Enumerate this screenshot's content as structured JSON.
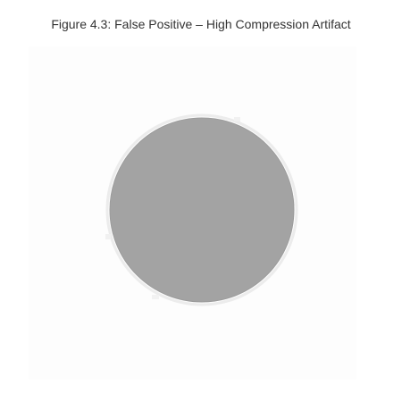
{
  "figure": {
    "caption": "Figure 4.3: False Positive – High Compression Artifact",
    "colors": {
      "background": "#ffffff",
      "panel": "#fdfdfd",
      "circle_fill": "#a3a3a3",
      "circle_edge": "#9c9c9c",
      "artifact_halo": "#ececec",
      "caption_text": "#333333"
    }
  }
}
